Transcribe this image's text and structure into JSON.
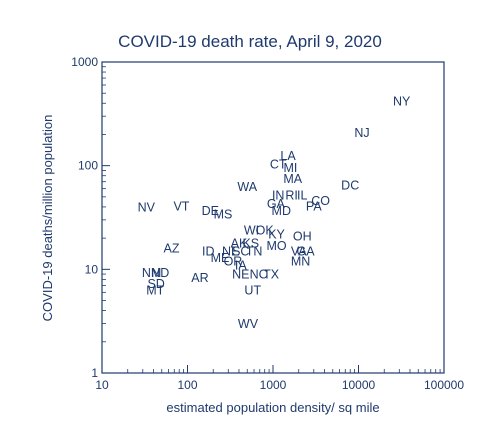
{
  "chart_data": {
    "type": "scatter",
    "title": "COVID-19 death rate, April 9, 2020",
    "xlabel": "estimated population density/ sq mile",
    "ylabel": "COVID-19 deaths/million population",
    "xscale": "log",
    "yscale": "log",
    "xlim": [
      10,
      100000
    ],
    "ylim": [
      1,
      1000
    ],
    "grid": false,
    "xticks": [
      "10",
      "100",
      "1000",
      "10000",
      "100000"
    ],
    "yticks": [
      "1",
      "10",
      "100",
      "1000"
    ],
    "series": [
      {
        "points": [
          {
            "label": "NY",
            "x": 32000,
            "y": 420
          },
          {
            "label": "NJ",
            "x": 11000,
            "y": 210
          },
          {
            "label": "LA",
            "x": 1500,
            "y": 125
          },
          {
            "label": "CT",
            "x": 1150,
            "y": 104
          },
          {
            "label": "MI",
            "x": 1600,
            "y": 96
          },
          {
            "label": "MA",
            "x": 1700,
            "y": 75
          },
          {
            "label": "DC",
            "x": 8000,
            "y": 65
          },
          {
            "label": "WA",
            "x": 500,
            "y": 63
          },
          {
            "label": "IN",
            "x": 1150,
            "y": 52
          },
          {
            "label": "RI",
            "x": 1650,
            "y": 52
          },
          {
            "label": "IL",
            "x": 2200,
            "y": 52
          },
          {
            "label": "CO",
            "x": 3600,
            "y": 46
          },
          {
            "label": "GA",
            "x": 1080,
            "y": 43
          },
          {
            "label": "PA",
            "x": 3000,
            "y": 41
          },
          {
            "label": "NV",
            "x": 33,
            "y": 40
          },
          {
            "label": "VT",
            "x": 85,
            "y": 41
          },
          {
            "label": "DE",
            "x": 185,
            "y": 37
          },
          {
            "label": "MD",
            "x": 1250,
            "y": 37
          },
          {
            "label": "MS",
            "x": 260,
            "y": 34
          },
          {
            "label": "WI",
            "x": 560,
            "y": 24
          },
          {
            "label": "OK",
            "x": 800,
            "y": 24
          },
          {
            "label": "KY",
            "x": 1100,
            "y": 22
          },
          {
            "label": "OH",
            "x": 2200,
            "y": 21
          },
          {
            "label": "AK",
            "x": 400,
            "y": 18
          },
          {
            "label": "KS",
            "x": 550,
            "y": 18
          },
          {
            "label": "MO",
            "x": 1100,
            "y": 17
          },
          {
            "label": "AZ",
            "x": 65,
            "y": 16
          },
          {
            "label": "ID",
            "x": 175,
            "y": 15
          },
          {
            "label": "NE",
            "x": 320,
            "y": 15
          },
          {
            "label": "SC",
            "x": 420,
            "y": 15
          },
          {
            "label": "TN",
            "x": 600,
            "y": 15
          },
          {
            "label": "VA",
            "x": 2000,
            "y": 15
          },
          {
            "label": "GA",
            "x": 2400,
            "y": 15
          },
          {
            "label": "ME",
            "x": 240,
            "y": 13
          },
          {
            "label": "OR",
            "x": 340,
            "y": 12
          },
          {
            "label": "MN",
            "x": 2100,
            "y": 12
          },
          {
            "label": "IA",
            "x": 420,
            "y": 11
          },
          {
            "label": "NM",
            "x": 38,
            "y": 9.3
          },
          {
            "label": "ND",
            "x": 48,
            "y": 9.3
          },
          {
            "label": "NE",
            "x": 420,
            "y": 9
          },
          {
            "label": "NC",
            "x": 680,
            "y": 9
          },
          {
            "label": "TX",
            "x": 950,
            "y": 9
          },
          {
            "label": "AR",
            "x": 140,
            "y": 8.3
          },
          {
            "label": "SD",
            "x": 43,
            "y": 7.3
          },
          {
            "label": "MT",
            "x": 42,
            "y": 6.3
          },
          {
            "label": "UT",
            "x": 580,
            "y": 6.3
          },
          {
            "label": "WV",
            "x": 510,
            "y": 3
          }
        ]
      }
    ]
  }
}
